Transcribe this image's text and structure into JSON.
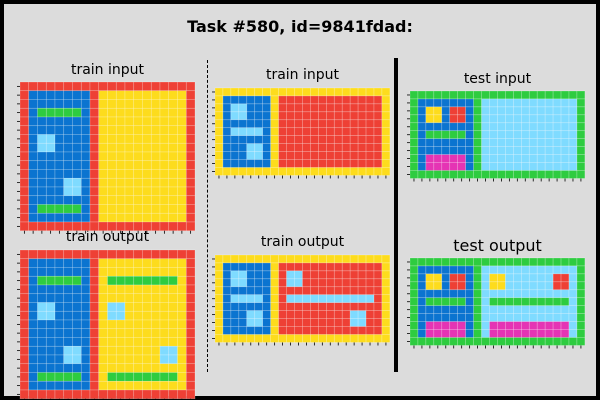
{
  "title": "Task #580, id=9841fdad:",
  "labels": {
    "train_input": "train input",
    "train_output": "train output",
    "test_input": "test input",
    "test_output": "test output"
  },
  "palette": {
    "R": "#ee4035",
    "B": "#0b74d0",
    "Y": "#fddc1d",
    "G": "#2ecc40",
    "L": "#7fdbff",
    "M": "#e534b4"
  },
  "grids": {
    "train_input_1": [
      "RRRRRRRRRRRRRRRRRRRR",
      "RBBBBBBBRYYYYYYYYYYR",
      "RBBBBBBBRYYYYYYYYYYR",
      "RBGGGGGBRYYYYYYYYYYR",
      "RBBBBBBBRYYYYYYYYYYR",
      "RBBBBBBBRYYYYYYYYYYR",
      "RBLLBBBBRYYYYYYYYYYR",
      "RBLLBBBBRYYYYYYYYYYR",
      "RBBBBBBBRYYYYYYYYYYR",
      "RBBBBBBBRYYYYYYYYYYR",
      "RBBBBBBBRYYYYYYYYYYR",
      "RBBBBLLBRYYYYYYYYYYR",
      "RBBBBLLBRYYYYYYYYYYR",
      "RBBBBBBBRYYYYYYYYYYR",
      "RBGGGGGBRYYYYYYYYYYR",
      "RBBBBBBBRYYYYYYYYYYR",
      "RRRRRRRRRRRRRRRRRRRR"
    ],
    "train_output_1": [
      "RRRRRRRRRRRRRRRRRRRR",
      "RBBBBBBBRYYYYYYYYYYR",
      "RBBBBBBBRYYYYYYYYYYR",
      "RBGGGGGBRYGGGGGGGGYR",
      "RBBBBBBBRYYYYYYYYYYR",
      "RBBBBBBBRYYYYYYYYYYR",
      "RBLLBBBBRYLLYYYYYYYR",
      "RBLLBBBBRYLLYYYYYYYR",
      "RBBBBBBBRYYYYYYYYYYR",
      "RBBBBBBBRYYYYYYYYYYR",
      "RBBBBBBBRYYYYYYYYYYR",
      "RBBBBLLBRYYYYYYYLLYR",
      "RBBBBLLBRYYYYYYYLLYR",
      "RBBBBBBBRYYYYYYYYYYR",
      "RBGGGGGBRYGGGGGGGGYR",
      "RBBBBBBBRYYYYYYYYYYR",
      "RRRRRRRRRRRRRRRRRRRR"
    ],
    "train_input_2": [
      "YYYYYYYYYYYYYYYYYYYYYY",
      "YBBBBBBYRRRRRRRRRRRRRY",
      "YBLLBBBYRRRRRRRRRRRRRY",
      "YBLLBBBYRRRRRRRRRRRRRY",
      "YBBBBBBYRRRRRRRRRRRRRY",
      "YBLLLLBYRRRRRRRRRRRRRY",
      "YBBBBBBYRRRRRRRRRRRRRY",
      "YBBBLLBYRRRRRRRRRRRRRY",
      "YBBBLLBYRRRRRRRRRRRRRY",
      "YBBBBBBYRRRRRRRRRRRRRY",
      "YYYYYYYYYYYYYYYYYYYYYY"
    ],
    "train_output_2": [
      "YYYYYYYYYYYYYYYYYYYYYY",
      "YBBBBBBYRRRRRRRRRRRRRY",
      "YBLLBBBYRLLRRRRRRRRRRY",
      "YBLLBBBYRLLRRRRRRRRRRY",
      "YBBBBBBYRRRRRRRRRRRRRY",
      "YBLLLLBYRLLLLLLLLLLLRY",
      "YBBBBBBYRRRRRRRRRRRRRY",
      "YBBBLLBYRRRRRRRRRLLRRY",
      "YBBBLLBYRRRRRRRRRLLRRY",
      "YBBBBBBYRRRRRRRRRRRRRY",
      "YYYYYYYYYYYYYYYYYYYYYY"
    ],
    "test_input": [
      "GGGGGGGGGGGGGGGGGGGGGG",
      "GBBBBBBBGLLLLLLLLLLLLG",
      "GBYYBRRBGLLLLLLLLLLLLG",
      "GBYYBRRBGLLLLLLLLLLLLG",
      "GBBBBBBBGLLLLLLLLLLLLG",
      "GBGGGGGBGLLLLLLLLLLLLG",
      "GBBBBBBBGLLLLLLLLLLLLG",
      "GBBBBBBBGLLLLLLLLLLLLG",
      "GBMMMMMBGLLLLLLLLLLLLG",
      "GBMMMMMBGLLLLLLLLLLLLG",
      "GGGGGGGGGGGGGGGGGGGGGG"
    ],
    "test_output": [
      "GGGGGGGGGGGGGGGGGGGGGG",
      "GBBBBBBBGLLLLLLLLLLLLG",
      "GBYYBRRBGLYYLLLLLLRRLG",
      "GBYYBRRBGLYYLLLLLLRRLG",
      "GBBBBBBBGLLLLLLLLLLLLG",
      "GBGGGGGBGLGGGGGGGGGGLG",
      "GBBBBBBBGLLLLLLLLLLLLG",
      "GBBBBBBBGLLLLLLLLLLLLG",
      "GBMMMMMBGLMMMMMMMMMMLG",
      "GBMMMMMBGLMMMMMMMMMMLG",
      "GGGGGGGGGGGGGGGGGGGGGG"
    ]
  }
}
